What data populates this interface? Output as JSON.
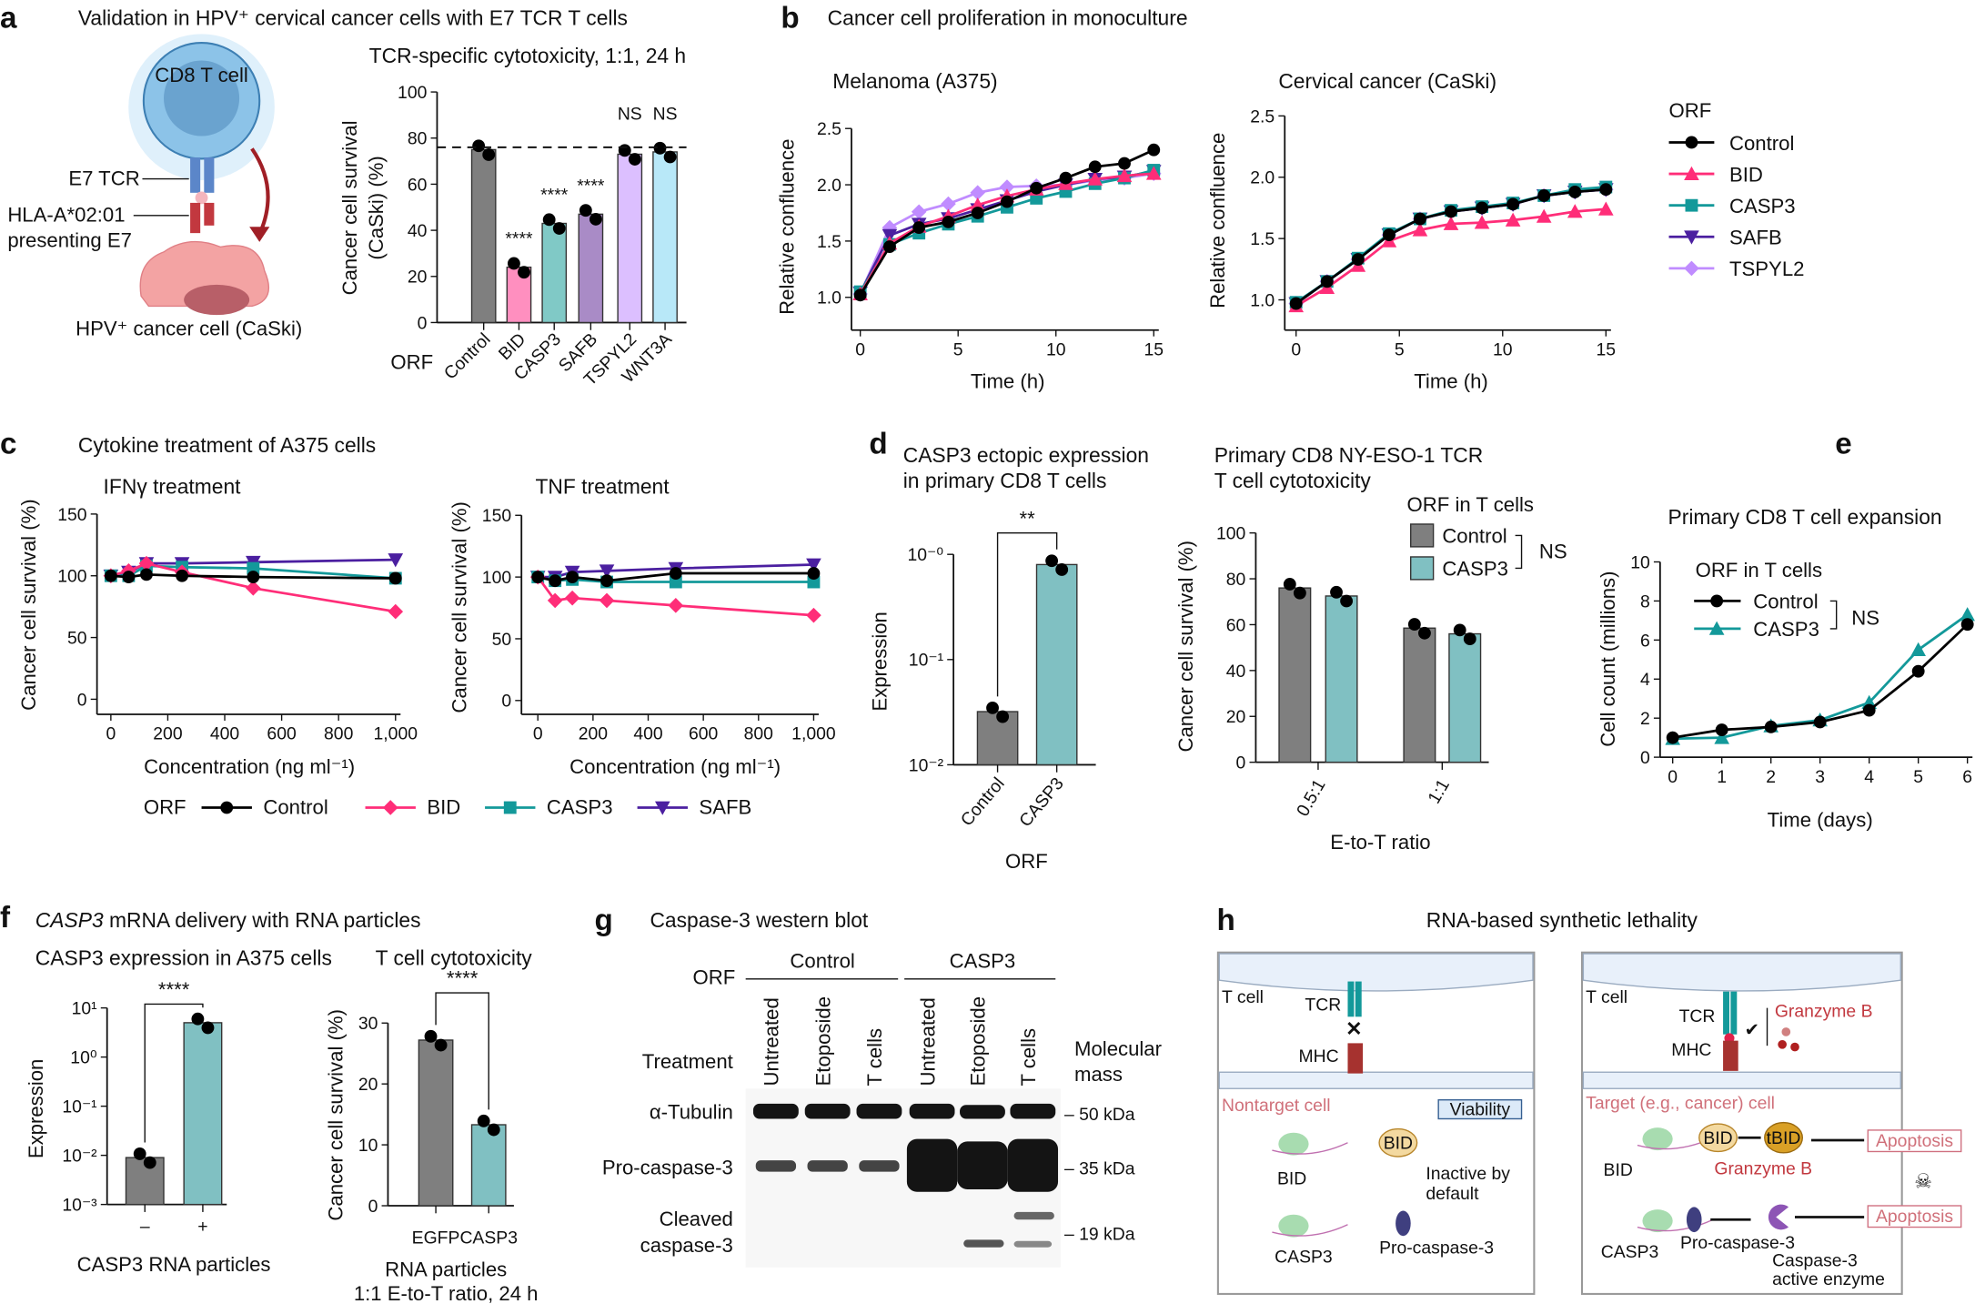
{
  "panel_labels": {
    "a": "a",
    "b": "b",
    "c": "c",
    "d": "d",
    "e": "e",
    "f": "f",
    "g": "g",
    "h": "h"
  },
  "a": {
    "title": "Validation in HPV⁺ cervical cancer cells with E7 TCR T cells",
    "cd8": "CD8 T cell",
    "e7tcr": "E7 TCR",
    "hla": "HLA-A*02:01",
    "presenting": "presenting E7",
    "cancer": "HPV⁺ cancer cell (CaSki)",
    "xlabel": "ORF"
  },
  "b": {
    "title": "Cancer cell proliferation in monoculture",
    "legend_title": "ORF"
  },
  "c": {
    "title": "Cytokine treatment of A375 cells",
    "legend_title": "ORF"
  },
  "d": {
    "legend_title": "ORF in T cells",
    "legend_sig": "NS"
  },
  "e": {
    "legend_title": "ORF in T cells",
    "legend_sig": "NS"
  },
  "f": {
    "title_italic": "CASP3",
    "title_rest": " mRNA delivery with RNA particles"
  },
  "g": {
    "title": "Caspase-3 western blot",
    "orf_label": "ORF",
    "group_control": "Control",
    "group_casp3": "CASP3",
    "treatment_label": "Treatment",
    "lanes": [
      "Untreated",
      "Etoposide",
      "T cells",
      "Untreated",
      "Etoposide",
      "T cells"
    ],
    "mass_label_1": "Molecular",
    "mass_label_2": "mass",
    "rows": {
      "tubulin": "α-Tubulin",
      "pro": "Pro-caspase-3",
      "cleaved_1": "Cleaved",
      "cleaved_2": "caspase-3"
    },
    "markers": [
      "– 50 kDa",
      "– 35 kDa",
      "– 19 kDa"
    ]
  },
  "h": {
    "title": "RNA-based synthetic lethality",
    "left": {
      "tcell": "T cell",
      "tcr": "TCR",
      "mhc": "MHC",
      "cell": "Nontarget cell",
      "viability": "Viability",
      "bid_protein": "BID",
      "bid_gene": "BID",
      "inactive_1": "Inactive by",
      "inactive_2": "default",
      "casp3_gene": "CASP3",
      "procasp": "Pro-caspase-3"
    },
    "right": {
      "tcell": "T cell",
      "tcr": "TCR",
      "mhc": "MHC",
      "granzyme_top": "Granzyme B",
      "cell": "Target (e.g., cancer) cell",
      "bid_protein": "BID",
      "tbid": "tBID",
      "bid_gene": "BID",
      "granzyme_mid": "Granzyme B",
      "casp3_gene": "CASP3",
      "procasp": "Pro-caspase-3",
      "active_1": "Caspase-3",
      "active_2": "active enzyme",
      "apoptosis_1": "Apoptosis",
      "apoptosis_2": "Apoptosis"
    }
  },
  "colors": {
    "Control": "#000000",
    "BID": "#ff2d78",
    "CASP3": "#13999a",
    "SAFB": "#4b1fa0",
    "TSPYL2": "#c08cff",
    "bar_grey": "#7f7f7f",
    "bar_teal": "#80c0c2"
  },
  "chart_data": [
    {
      "type": "bar",
      "title": "TCR-specific cytotoxicity, 1:1, 24 h",
      "ylabel": [
        "Cancer cell survival",
        "(CaSki) (%)"
      ],
      "xlabel": "ORF",
      "ylim": [
        0,
        100
      ],
      "yticks": [
        0,
        20,
        40,
        60,
        80,
        100
      ],
      "yticklabels": [
        "0",
        "20",
        "40",
        "60",
        "80",
        "100"
      ],
      "categories": [
        "Control",
        "BID",
        "CASP3",
        "SAFB",
        "TSPYL2",
        "WNT3A"
      ],
      "series": [
        {
          "values": [
            75,
            24,
            43,
            47,
            73,
            74
          ]
        }
      ],
      "bar_colors": [
        "#7f7f7f",
        "#ff8fbf",
        "#80c9c6",
        "#a98bc6",
        "#dcbfff",
        "#b8e8f8"
      ],
      "reference_line": 76,
      "annotations": [
        "",
        "****",
        "****",
        "****",
        "NS",
        "NS"
      ]
    },
    {
      "type": "line",
      "title": "Melanoma (A375)",
      "xlabel": "Time (h)",
      "ylabel": "Relative confluence",
      "xlim": [
        0,
        15
      ],
      "ylim": [
        1.0,
        2.5
      ],
      "xticks": [
        0,
        5,
        10,
        15
      ],
      "xticklabels": [
        "0",
        "5",
        "10",
        "15"
      ],
      "yticks": [
        1.0,
        1.5,
        2.0,
        2.5
      ],
      "yticklabels": [
        "1.0",
        "1.5",
        "2.0",
        "2.5"
      ],
      "x": [
        0,
        1.5,
        3,
        4.5,
        6,
        7.5,
        9,
        10.5,
        12,
        13.5,
        15
      ],
      "series": [
        {
          "name": "TSPYL2",
          "marker": "diamond",
          "values": [
            1.03,
            1.62,
            1.76,
            1.83,
            1.93,
            1.98,
            1.99,
            2.0,
            2.04,
            2.06,
            2.1
          ]
        },
        {
          "name": "SAFB",
          "marker": "tri-down",
          "values": [
            1.04,
            1.55,
            1.65,
            1.7,
            1.78,
            1.86,
            1.94,
            2.0,
            2.05,
            2.07,
            2.12
          ]
        },
        {
          "name": "CASP3",
          "marker": "square",
          "values": [
            1.05,
            1.47,
            1.57,
            1.65,
            1.72,
            1.8,
            1.88,
            1.94,
            2.01,
            2.06,
            2.13
          ]
        },
        {
          "name": "BID",
          "marker": "triangle",
          "values": [
            1.03,
            1.48,
            1.63,
            1.72,
            1.82,
            1.9,
            1.96,
            2.01,
            2.05,
            2.08,
            2.1
          ]
        },
        {
          "name": "Control",
          "marker": "circle",
          "values": [
            1.02,
            1.45,
            1.62,
            1.67,
            1.75,
            1.85,
            1.97,
            2.06,
            2.16,
            2.19,
            2.31
          ]
        }
      ]
    },
    {
      "type": "line",
      "title": "Cervical cancer (CaSki)",
      "xlabel": "Time (h)",
      "ylabel": "Relative confluence",
      "xlim": [
        0,
        15
      ],
      "ylim": [
        1.0,
        2.5
      ],
      "xticks": [
        0,
        5,
        10,
        15
      ],
      "xticklabels": [
        "0",
        "5",
        "10",
        "15"
      ],
      "yticks": [
        1.0,
        1.5,
        2.0,
        2.5
      ],
      "yticklabels": [
        "1.0",
        "1.5",
        "2.0",
        "2.5"
      ],
      "x": [
        0,
        1.5,
        3,
        4.5,
        6,
        7.5,
        9,
        10.5,
        12,
        13.5,
        15
      ],
      "series": [
        {
          "name": "TSPYL2",
          "marker": "diamond",
          "values": [
            0.97,
            1.15,
            1.33,
            1.53,
            1.66,
            1.72,
            1.75,
            1.78,
            1.85,
            1.88,
            1.9
          ]
        },
        {
          "name": "SAFB",
          "marker": "tri-down",
          "values": [
            0.97,
            1.15,
            1.33,
            1.53,
            1.66,
            1.72,
            1.75,
            1.78,
            1.85,
            1.88,
            1.9
          ]
        },
        {
          "name": "CASP3",
          "marker": "square",
          "values": [
            0.98,
            1.15,
            1.34,
            1.54,
            1.66,
            1.73,
            1.76,
            1.79,
            1.85,
            1.9,
            1.92
          ]
        },
        {
          "name": "BID",
          "marker": "triangle",
          "values": [
            0.95,
            1.1,
            1.28,
            1.48,
            1.57,
            1.62,
            1.63,
            1.65,
            1.68,
            1.72,
            1.74
          ]
        },
        {
          "name": "Control",
          "marker": "circle",
          "values": [
            0.97,
            1.15,
            1.33,
            1.53,
            1.66,
            1.72,
            1.75,
            1.78,
            1.85,
            1.88,
            1.9
          ]
        }
      ],
      "legend": "right"
    },
    {
      "type": "line",
      "title": "IFNγ treatment",
      "xlabel": "Concentration (ng ml⁻¹)",
      "ylabel": "Cancer cell survival (%)",
      "xlim": [
        0,
        1000
      ],
      "ylim": [
        0,
        150
      ],
      "xticks": [
        0,
        200,
        400,
        600,
        800,
        1000
      ],
      "xticklabels": [
        "0",
        "200",
        "400",
        "600",
        "800",
        "1,000"
      ],
      "yticks": [
        0,
        50,
        100,
        150
      ],
      "yticklabels": [
        "0",
        "50",
        "100",
        "150"
      ],
      "x": [
        0,
        62.5,
        125,
        250,
        500,
        1000
      ],
      "series": [
        {
          "name": "SAFB",
          "marker": "tri-down",
          "values": [
            100,
            103,
            110,
            110,
            111,
            113
          ]
        },
        {
          "name": "CASP3",
          "marker": "square",
          "values": [
            100,
            100,
            108,
            107,
            106,
            98
          ]
        },
        {
          "name": "BID",
          "marker": "diamond",
          "values": [
            100,
            104,
            110,
            103,
            90,
            71
          ]
        },
        {
          "name": "Control",
          "marker": "circle",
          "values": [
            100,
            99,
            101,
            100,
            99,
            98
          ]
        }
      ],
      "legend": "bottom"
    },
    {
      "type": "line",
      "title": "TNF treatment",
      "xlabel": "Concentration (ng ml⁻¹)",
      "ylabel": "Cancer cell survival (%)",
      "xlim": [
        0,
        1000
      ],
      "ylim": [
        0,
        150
      ],
      "xticks": [
        0,
        200,
        400,
        600,
        800,
        1000
      ],
      "xticklabels": [
        "0",
        "200",
        "400",
        "600",
        "800",
        "1,000"
      ],
      "yticks": [
        0,
        50,
        100,
        150
      ],
      "yticklabels": [
        "0",
        "50",
        "100",
        "150"
      ],
      "x": [
        0,
        62.5,
        125,
        250,
        500,
        1000
      ],
      "series": [
        {
          "name": "SAFB",
          "marker": "tri-down",
          "values": [
            100,
            100,
            104,
            105,
            107,
            110
          ]
        },
        {
          "name": "CASP3",
          "marker": "square",
          "values": [
            100,
            97,
            98,
            96,
            96,
            96
          ]
        },
        {
          "name": "BID",
          "marker": "diamond",
          "values": [
            100,
            81,
            83,
            81,
            77,
            69
          ]
        },
        {
          "name": "Control",
          "marker": "circle",
          "values": [
            100,
            97,
            100,
            97,
            103,
            103
          ]
        }
      ]
    },
    {
      "type": "bar",
      "title": [
        "CASP3 ectopic expression",
        "in primary CD8 T cells"
      ],
      "ylabel": "Expression",
      "xlabel": "ORF",
      "yscale": "log",
      "ylim": [
        0.01,
        1
      ],
      "yticks": [
        0.01,
        0.1,
        1
      ],
      "yticklabels": [
        "10⁻²",
        "10⁻¹",
        "10⁻⁰"
      ],
      "categories": [
        "Control",
        "CASP3"
      ],
      "series": [
        {
          "values": [
            0.032,
            0.8
          ]
        }
      ],
      "bar_colors": [
        "#7f7f7f",
        "#80c0c2"
      ],
      "significance": "**"
    },
    {
      "type": "bar",
      "title": [
        "Primary CD8 NY-ESO-1 TCR",
        "T cell cytotoxicity"
      ],
      "ylabel": "Cancer cell survival (%)",
      "xlabel": "E-to-T ratio",
      "ylim": [
        0,
        100
      ],
      "yticks": [
        0,
        20,
        40,
        60,
        80,
        100
      ],
      "yticklabels": [
        "0",
        "20",
        "40",
        "60",
        "80",
        "100"
      ],
      "categories": [
        "0.5:1",
        "1:1"
      ],
      "series": [
        {
          "name": "Control",
          "values": [
            76,
            58.5
          ]
        },
        {
          "name": "CASP3",
          "values": [
            72.5,
            56
          ]
        }
      ],
      "legend": "top-right"
    },
    {
      "type": "line",
      "title": "Primary CD8 T cell expansion",
      "xlabel": "Time (days)",
      "ylabel": "Cell count (millions)",
      "xlim": [
        0,
        6
      ],
      "ylim": [
        0,
        10
      ],
      "xticks": [
        0,
        1,
        2,
        3,
        4,
        5,
        6
      ],
      "xticklabels": [
        "0",
        "1",
        "2",
        "3",
        "4",
        "5",
        "6"
      ],
      "yticks": [
        0,
        2,
        4,
        6,
        8,
        10
      ],
      "yticklabels": [
        "0",
        "2",
        "4",
        "6",
        "8",
        "10"
      ],
      "x": [
        0,
        1,
        2,
        3,
        4,
        5,
        6
      ],
      "series": [
        {
          "name": "CASP3",
          "marker": "triangle",
          "values": [
            0.95,
            1.0,
            1.6,
            1.9,
            2.8,
            5.5,
            7.3
          ]
        },
        {
          "name": "Control",
          "marker": "circle",
          "values": [
            1.0,
            1.4,
            1.55,
            1.8,
            2.4,
            4.4,
            6.8
          ]
        }
      ],
      "legend": "top-left"
    },
    {
      "type": "bar",
      "title": "CASP3 expression in A375 cells",
      "ylabel": "Expression",
      "xlabel": "CASP3 RNA particles",
      "yscale": "log",
      "ylim": [
        0.001,
        10
      ],
      "yticks": [
        0.001,
        0.01,
        0.1,
        1,
        10
      ],
      "yticklabels": [
        "10⁻³",
        "10⁻²",
        "10⁻¹",
        "10⁰",
        "10¹"
      ],
      "categories": [
        "–",
        "+"
      ],
      "series": [
        {
          "values": [
            0.009,
            5
          ]
        }
      ],
      "bar_colors": [
        "#7f7f7f",
        "#80c0c2"
      ],
      "significance": "****"
    },
    {
      "type": "bar",
      "title": "T cell cytotoxicity",
      "ylabel": "Cancer cell survival (%)",
      "xlabel": [
        "RNA particles",
        "1:1 E-to-T ratio, 24 h"
      ],
      "ylim": [
        0,
        30
      ],
      "yticks": [
        0,
        10,
        20,
        30
      ],
      "yticklabels": [
        "0",
        "10",
        "20",
        "30"
      ],
      "categories": [
        "EGFP",
        "CASP3"
      ],
      "series": [
        {
          "values": [
            27.2,
            13.3
          ]
        }
      ],
      "bar_colors": [
        "#7f7f7f",
        "#80c0c2"
      ],
      "significance": "****"
    }
  ]
}
